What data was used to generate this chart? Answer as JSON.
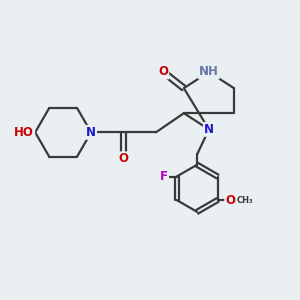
{
  "background_color": "#eaeff2",
  "atom_colors": {
    "C": "#3a3a3a",
    "N": "#1a1acc",
    "NH": "#5a5aaa",
    "O": "#cc0000",
    "F": "#bb00bb",
    "HO": "#cc0000"
  },
  "bond_color": "#3a3a3a",
  "bond_width": 1.6,
  "font_size": 8.5
}
